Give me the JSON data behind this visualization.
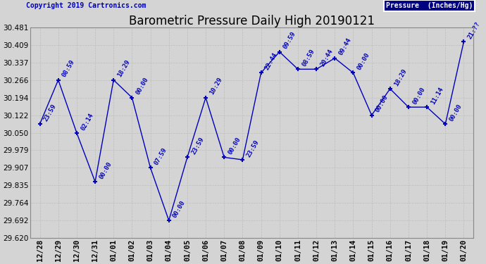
{
  "title": "Barometric Pressure Daily High 20190121",
  "ylabel": "Pressure  (Inches/Hg)",
  "copyright": "Copyright 2019 Cartronics.com",
  "line_color": "#0000BB",
  "background_color": "#D4D4D4",
  "plot_bg_color": "#D4D4D4",
  "ylim_min": 29.62,
  "ylim_max": 30.481,
  "yticks": [
    29.62,
    29.692,
    29.764,
    29.835,
    29.907,
    29.979,
    30.05,
    30.122,
    30.194,
    30.266,
    30.337,
    30.409,
    30.481
  ],
  "dates": [
    "12/28",
    "12/29",
    "12/30",
    "12/31",
    "01/01",
    "01/02",
    "01/03",
    "01/04",
    "01/05",
    "01/06",
    "01/07",
    "01/08",
    "01/09",
    "01/10",
    "01/11",
    "01/12",
    "01/13",
    "01/14",
    "01/15",
    "01/16",
    "01/17",
    "01/18",
    "01/19",
    "01/20"
  ],
  "values": [
    30.086,
    30.266,
    30.05,
    29.85,
    30.266,
    30.194,
    29.907,
    29.692,
    29.95,
    30.194,
    29.95,
    29.94,
    30.295,
    30.381,
    30.31,
    30.31,
    30.355,
    30.295,
    30.122,
    30.23,
    30.155,
    30.155,
    30.086,
    30.423
  ],
  "annotations": [
    "23:59",
    "08:59",
    "02:14",
    "00:00",
    "18:29",
    "00:00",
    "07:59",
    "00:00",
    "23:59",
    "10:29",
    "00:00",
    "23:59",
    "22:44",
    "09:59",
    "08:59",
    "20:44",
    "09:44",
    "00:00",
    "00:00",
    "18:29",
    "00:00",
    "11:14",
    "00:00",
    "21:??"
  ],
  "grid_color": "#BBBBBB",
  "marker_size": 5,
  "legend_bg": "#000080",
  "legend_fg": "#FFFFFF",
  "annot_rotation": 60,
  "annot_fontsize": 6.5,
  "tick_fontsize": 7.5,
  "title_fontsize": 12,
  "copyright_fontsize": 7
}
